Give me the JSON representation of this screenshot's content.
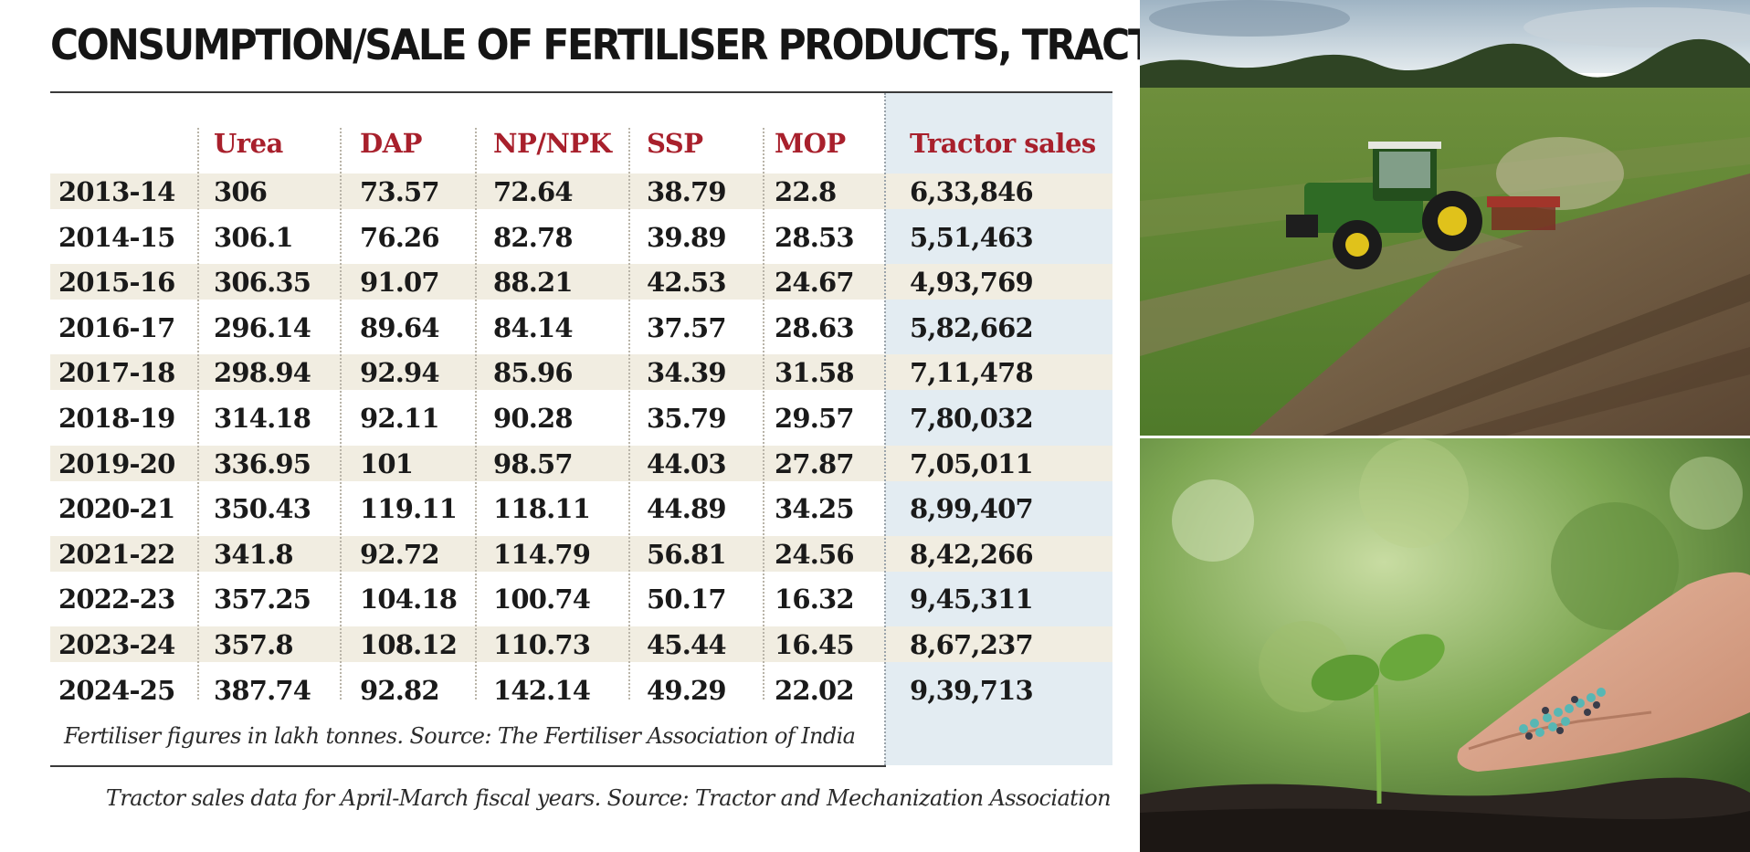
{
  "title": "CONSUMPTION/SALE OF FERTILISER PRODUCTS, TRACTORS",
  "table": {
    "columns": [
      "",
      "Urea",
      "DAP",
      "NP/NPK",
      "SSP",
      "MOP",
      "Tractor sales"
    ],
    "rows": [
      [
        "2013-14",
        "306",
        "73.57",
        "72.64",
        "38.79",
        "22.8",
        "6,33,846"
      ],
      [
        "2014-15",
        "306.1",
        "76.26",
        "82.78",
        "39.89",
        "28.53",
        "5,51,463"
      ],
      [
        "2015-16",
        "306.35",
        "91.07",
        "88.21",
        "42.53",
        "24.67",
        "4,93,769"
      ],
      [
        "2016-17",
        "296.14",
        "89.64",
        "84.14",
        "37.57",
        "28.63",
        "5,82,662"
      ],
      [
        "2017-18",
        "298.94",
        "92.94",
        "85.96",
        "34.39",
        "31.58",
        "7,11,478"
      ],
      [
        "2018-19",
        "314.18",
        "92.11",
        "90.28",
        "35.79",
        "29.57",
        "7,80,032"
      ],
      [
        "2019-20",
        "336.95",
        "101",
        "98.57",
        "44.03",
        "27.87",
        "7,05,011"
      ],
      [
        "2020-21",
        "350.43",
        "119.11",
        "118.11",
        "44.89",
        "34.25",
        "8,99,407"
      ],
      [
        "2021-22",
        "341.8",
        "92.72",
        "114.79",
        "56.81",
        "24.56",
        "8,42,266"
      ],
      [
        "2022-23",
        "357.25",
        "104.18",
        "100.74",
        "50.17",
        "16.32",
        "9,45,311"
      ],
      [
        "2023-24",
        "357.8",
        "108.12",
        "110.73",
        "45.44",
        "16.45",
        "8,67,237"
      ],
      [
        "2024-25",
        "387.74",
        "92.82",
        "142.14",
        "49.29",
        "22.02",
        "9,39,713"
      ]
    ]
  },
  "footnote": "Fertiliser figures in lakh tonnes. Source: The Fertiliser Association of India",
  "source_note": "Tractor sales data for April-March fiscal years. Source: Tractor and Mechanization Association",
  "colors": {
    "header_red": "#a8202c",
    "stripe": "#f1ede1",
    "tractor_column_bg": "#e3ecf2",
    "text": "#1a1a1a"
  },
  "images": {
    "top": "tractor-field-photo",
    "bottom": "hand-fertiliser-seedling-photo"
  }
}
